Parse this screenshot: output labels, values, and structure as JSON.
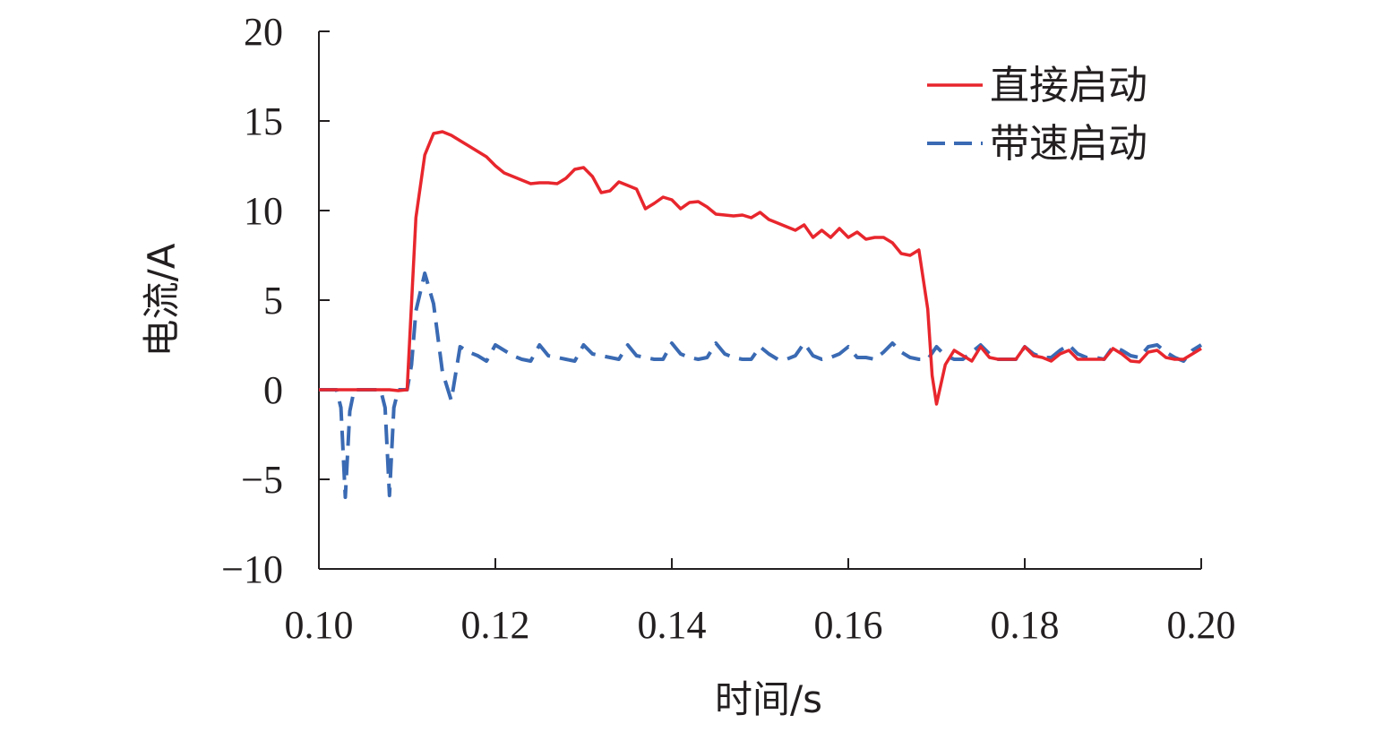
{
  "chart_data": {
    "type": "line",
    "xlabel": "时间/s",
    "ylabel": "电流/A",
    "xlim": [
      0.1,
      0.2
    ],
    "ylim": [
      -10,
      20
    ],
    "x_ticks": [
      "0.10",
      "0.12",
      "0.14",
      "0.16",
      "0.18",
      "0.20"
    ],
    "y_ticks": [
      "20",
      "15",
      "10",
      "5",
      "0",
      "−5",
      "−10"
    ],
    "grid": false,
    "legend_position": "top-right",
    "series": [
      {
        "name": "直接启动",
        "color": "#e8262d",
        "dash": "solid",
        "points": [
          [
            0.1,
            0
          ],
          [
            0.101,
            0
          ],
          [
            0.102,
            0
          ],
          [
            0.103,
            0
          ],
          [
            0.104,
            0
          ],
          [
            0.105,
            0
          ],
          [
            0.106,
            0
          ],
          [
            0.107,
            0
          ],
          [
            0.108,
            0
          ],
          [
            0.109,
            -0.05
          ],
          [
            0.11,
            0
          ],
          [
            0.111,
            9.6
          ],
          [
            0.112,
            13.1
          ],
          [
            0.113,
            14.3
          ],
          [
            0.114,
            14.4
          ],
          [
            0.115,
            14.2
          ],
          [
            0.116,
            13.9
          ],
          [
            0.117,
            13.6
          ],
          [
            0.118,
            13.3
          ],
          [
            0.119,
            13.0
          ],
          [
            0.12,
            12.5
          ],
          [
            0.121,
            12.1
          ],
          [
            0.122,
            11.9
          ],
          [
            0.123,
            11.7
          ],
          [
            0.124,
            11.5
          ],
          [
            0.125,
            11.55
          ],
          [
            0.126,
            11.55
          ],
          [
            0.127,
            11.5
          ],
          [
            0.128,
            11.8
          ],
          [
            0.129,
            12.3
          ],
          [
            0.13,
            12.4
          ],
          [
            0.131,
            11.9
          ],
          [
            0.132,
            11.0
          ],
          [
            0.133,
            11.1
          ],
          [
            0.134,
            11.6
          ],
          [
            0.135,
            11.4
          ],
          [
            0.136,
            11.2
          ],
          [
            0.137,
            10.1
          ],
          [
            0.138,
            10.4
          ],
          [
            0.139,
            10.75
          ],
          [
            0.14,
            10.6
          ],
          [
            0.141,
            10.1
          ],
          [
            0.142,
            10.45
          ],
          [
            0.143,
            10.5
          ],
          [
            0.144,
            10.2
          ],
          [
            0.145,
            9.8
          ],
          [
            0.146,
            9.75
          ],
          [
            0.147,
            9.7
          ],
          [
            0.148,
            9.75
          ],
          [
            0.149,
            9.6
          ],
          [
            0.15,
            9.9
          ],
          [
            0.151,
            9.5
          ],
          [
            0.152,
            9.3
          ],
          [
            0.153,
            9.1
          ],
          [
            0.154,
            8.9
          ],
          [
            0.155,
            9.2
          ],
          [
            0.156,
            8.5
          ],
          [
            0.157,
            8.9
          ],
          [
            0.158,
            8.5
          ],
          [
            0.159,
            9.0
          ],
          [
            0.16,
            8.5
          ],
          [
            0.161,
            8.8
          ],
          [
            0.162,
            8.4
          ],
          [
            0.163,
            8.5
          ],
          [
            0.164,
            8.5
          ],
          [
            0.165,
            8.2
          ],
          [
            0.166,
            7.6
          ],
          [
            0.167,
            7.5
          ],
          [
            0.168,
            7.8
          ],
          [
            0.169,
            4.5
          ],
          [
            0.1695,
            0.8
          ],
          [
            0.17,
            -0.8
          ],
          [
            0.171,
            1.4
          ],
          [
            0.172,
            2.2
          ],
          [
            0.173,
            1.9
          ],
          [
            0.174,
            1.6
          ],
          [
            0.175,
            2.4
          ],
          [
            0.176,
            1.8
          ],
          [
            0.177,
            1.7
          ],
          [
            0.178,
            1.7
          ],
          [
            0.179,
            1.7
          ],
          [
            0.18,
            2.4
          ],
          [
            0.181,
            1.9
          ],
          [
            0.182,
            1.8
          ],
          [
            0.183,
            1.6
          ],
          [
            0.184,
            2.0
          ],
          [
            0.185,
            2.2
          ],
          [
            0.186,
            1.7
          ],
          [
            0.187,
            1.7
          ],
          [
            0.188,
            1.7
          ],
          [
            0.189,
            1.7
          ],
          [
            0.19,
            2.3
          ],
          [
            0.191,
            2.0
          ],
          [
            0.192,
            1.6
          ],
          [
            0.193,
            1.55
          ],
          [
            0.194,
            2.1
          ],
          [
            0.195,
            2.2
          ],
          [
            0.196,
            1.8
          ],
          [
            0.197,
            1.7
          ],
          [
            0.198,
            1.7
          ],
          [
            0.199,
            2.0
          ],
          [
            0.2,
            2.3
          ]
        ]
      },
      {
        "name": "带速启动",
        "color": "#3a6ab3",
        "dash": "dashed",
        "points": [
          [
            0.1,
            0
          ],
          [
            0.101,
            0
          ],
          [
            0.102,
            0
          ],
          [
            0.1025,
            -1.0
          ],
          [
            0.103,
            -6.0
          ],
          [
            0.1035,
            -1.2
          ],
          [
            0.104,
            0
          ],
          [
            0.105,
            0
          ],
          [
            0.106,
            0
          ],
          [
            0.107,
            0
          ],
          [
            0.1075,
            -1.0
          ],
          [
            0.108,
            -5.9
          ],
          [
            0.1085,
            -1.0
          ],
          [
            0.109,
            0
          ],
          [
            0.11,
            0
          ],
          [
            0.1105,
            1.4
          ],
          [
            0.111,
            4.4
          ],
          [
            0.112,
            6.5
          ],
          [
            0.113,
            4.8
          ],
          [
            0.114,
            1.0
          ],
          [
            0.115,
            -0.6
          ],
          [
            0.116,
            2.4
          ],
          [
            0.117,
            2.1
          ],
          [
            0.118,
            1.9
          ],
          [
            0.119,
            1.6
          ],
          [
            0.12,
            2.5
          ],
          [
            0.121,
            2.2
          ],
          [
            0.122,
            1.9
          ],
          [
            0.123,
            1.7
          ],
          [
            0.124,
            1.6
          ],
          [
            0.125,
            2.5
          ],
          [
            0.126,
            1.9
          ],
          [
            0.127,
            1.8
          ],
          [
            0.128,
            1.7
          ],
          [
            0.129,
            1.6
          ],
          [
            0.13,
            2.5
          ],
          [
            0.131,
            2.0
          ],
          [
            0.132,
            1.9
          ],
          [
            0.133,
            1.8
          ],
          [
            0.134,
            1.7
          ],
          [
            0.135,
            2.5
          ],
          [
            0.136,
            1.9
          ],
          [
            0.137,
            1.8
          ],
          [
            0.138,
            1.7
          ],
          [
            0.139,
            1.7
          ],
          [
            0.14,
            2.6
          ],
          [
            0.141,
            2.0
          ],
          [
            0.142,
            1.8
          ],
          [
            0.143,
            1.7
          ],
          [
            0.144,
            1.8
          ],
          [
            0.145,
            2.6
          ],
          [
            0.146,
            2.0
          ],
          [
            0.147,
            1.8
          ],
          [
            0.148,
            1.7
          ],
          [
            0.149,
            1.7
          ],
          [
            0.15,
            2.4
          ],
          [
            0.151,
            2.0
          ],
          [
            0.152,
            1.7
          ],
          [
            0.153,
            1.7
          ],
          [
            0.154,
            1.9
          ],
          [
            0.155,
            2.6
          ],
          [
            0.156,
            1.9
          ],
          [
            0.157,
            1.7
          ],
          [
            0.158,
            1.8
          ],
          [
            0.159,
            2.0
          ],
          [
            0.16,
            2.4
          ],
          [
            0.161,
            1.8
          ],
          [
            0.162,
            1.8
          ],
          [
            0.163,
            1.7
          ],
          [
            0.164,
            2.1
          ],
          [
            0.165,
            2.6
          ],
          [
            0.166,
            2.1
          ],
          [
            0.167,
            1.8
          ],
          [
            0.168,
            1.7
          ],
          [
            0.169,
            1.7
          ],
          [
            0.17,
            2.4
          ],
          [
            0.171,
            1.9
          ],
          [
            0.172,
            1.7
          ],
          [
            0.173,
            1.7
          ],
          [
            0.174,
            2.1
          ],
          [
            0.175,
            2.5
          ],
          [
            0.176,
            2.0
          ],
          [
            0.177,
            1.7
          ],
          [
            0.178,
            1.7
          ],
          [
            0.179,
            1.7
          ],
          [
            0.18,
            2.4
          ],
          [
            0.181,
            2.0
          ],
          [
            0.182,
            1.8
          ],
          [
            0.183,
            1.8
          ],
          [
            0.184,
            2.2
          ],
          [
            0.185,
            2.5
          ],
          [
            0.186,
            2.0
          ],
          [
            0.187,
            1.8
          ],
          [
            0.188,
            1.8
          ],
          [
            0.189,
            1.7
          ],
          [
            0.19,
            2.4
          ],
          [
            0.191,
            2.2
          ],
          [
            0.192,
            1.9
          ],
          [
            0.193,
            1.8
          ],
          [
            0.194,
            2.4
          ],
          [
            0.195,
            2.5
          ],
          [
            0.196,
            2.1
          ],
          [
            0.197,
            1.8
          ],
          [
            0.198,
            1.6
          ],
          [
            0.199,
            2.2
          ],
          [
            0.2,
            2.5
          ]
        ]
      }
    ]
  }
}
